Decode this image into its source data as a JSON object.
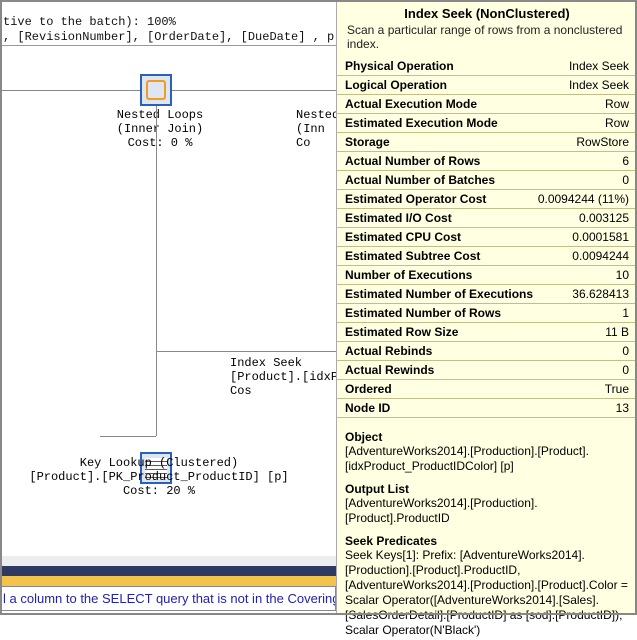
{
  "code": {
    "line1": "tive to the batch): 100%",
    "line2": ", [RevisionNumber], [OrderDate], [DueDate] , p.Name, p.ListPrice, sod.OrderQty FROM"
  },
  "plan": {
    "nested_loops": {
      "l1": "Nested Loops",
      "l2": "(Inner Join)",
      "l3": "Cost: 0 %"
    },
    "nested_right": {
      "l1": "Nested",
      "l2": "(Inn",
      "l3": "Co"
    },
    "index_seek_mid": {
      "l1": "Index Seek",
      "l2": "[Product].[idxPr",
      "l3": "Cos"
    },
    "key_lookup": {
      "l1": "Key Lookup (Clustered)",
      "l2": "[Product].[PK_Product_ProductID] [p]",
      "l3": "Cost: 20 %"
    }
  },
  "tooltip": {
    "title": "Index Seek (NonClustered)",
    "desc": "Scan a particular range of rows from a nonclustered index.",
    "rows": [
      {
        "k": "Physical Operation",
        "v": "Index Seek"
      },
      {
        "k": "Logical Operation",
        "v": "Index Seek"
      },
      {
        "k": "Actual Execution Mode",
        "v": "Row"
      },
      {
        "k": "Estimated Execution Mode",
        "v": "Row"
      },
      {
        "k": "Storage",
        "v": "RowStore"
      },
      {
        "k": "Actual Number of Rows",
        "v": "6"
      },
      {
        "k": "Actual Number of Batches",
        "v": "0"
      },
      {
        "k": "Estimated Operator Cost",
        "v": "0.0094244 (11%)"
      },
      {
        "k": "Estimated I/O Cost",
        "v": "0.003125"
      },
      {
        "k": "Estimated CPU Cost",
        "v": "0.0001581"
      },
      {
        "k": "Estimated Subtree Cost",
        "v": "0.0094244"
      },
      {
        "k": "Number of Executions",
        "v": "10"
      },
      {
        "k": "Estimated Number of Executions",
        "v": "36.628413"
      },
      {
        "k": "Estimated Number of Rows",
        "v": "1"
      },
      {
        "k": "Estimated Row Size",
        "v": "11 B"
      },
      {
        "k": "Actual Rebinds",
        "v": "0"
      },
      {
        "k": "Actual Rewinds",
        "v": "0"
      },
      {
        "k": "Ordered",
        "v": "True"
      },
      {
        "k": "Node ID",
        "v": "13"
      }
    ],
    "object_h": "Object",
    "object_b": "[AdventureWorks2014].[Production].[Product].[idxProduct_ProductIDColor] [p]",
    "output_h": "Output List",
    "output_b": "[AdventureWorks2014].[Production].[Product].ProductID",
    "seek_h": "Seek Predicates",
    "seek_b": "Seek Keys[1]: Prefix: [AdventureWorks2014].[Production].[Product].ProductID, [AdventureWorks2014].[Production].[Product].Color = Scalar Operator([AdventureWorks2014].[Sales].[SalesOrderDetail].[ProductID] as [sod].[ProductID]), Scalar Operator(N'Black')"
  },
  "bottom": {
    "band1_color": "#ecedee",
    "band2_color": "#2f3a63",
    "band3_color": "#f3c44c",
    "msg": "l a column to the SELECT query that is not in the Covering"
  }
}
